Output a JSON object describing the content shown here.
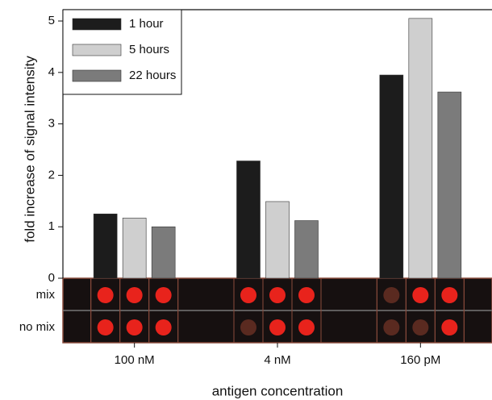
{
  "chart_data": {
    "type": "bar",
    "ylabel": "fold increase of signal intensity",
    "xlabel": "antigen concentration",
    "categories": [
      "100 nM",
      "4 nM",
      "160 pM"
    ],
    "series": [
      {
        "name": "1 hour",
        "color": "#1c1c1c",
        "values": [
          1.25,
          2.28,
          3.95
        ]
      },
      {
        "name": "5 hours",
        "color": "#cfcfcf",
        "values": [
          1.17,
          1.49,
          5.05
        ]
      },
      {
        "name": "22 hours",
        "color": "#7b7b7b",
        "values": [
          1.0,
          1.12,
          3.62
        ]
      }
    ],
    "ylim": [
      0,
      5.22
    ],
    "yticks": [
      0,
      1,
      2,
      3,
      4,
      5
    ],
    "legend": "upper left",
    "image_rows": [
      "mix",
      "no mix"
    ]
  }
}
